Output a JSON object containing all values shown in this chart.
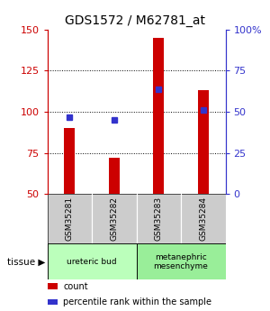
{
  "title": "GDS1572 / M62781_at",
  "samples": [
    "GSM35281",
    "GSM35282",
    "GSM35283",
    "GSM35284"
  ],
  "counts": [
    90,
    72,
    145,
    113
  ],
  "percentile_ranks": [
    47,
    45,
    64,
    51
  ],
  "ylim_left": [
    50,
    150
  ],
  "ylim_right": [
    0,
    100
  ],
  "yticks_left": [
    50,
    75,
    100,
    125,
    150
  ],
  "yticks_right": [
    0,
    25,
    50,
    75,
    100
  ],
  "ytick_labels_right": [
    "0",
    "25",
    "50",
    "75",
    "100%"
  ],
  "bar_color": "#cc0000",
  "dot_color": "#3333cc",
  "tissue_groups": [
    {
      "label": "ureteric bud",
      "samples": [
        0,
        1
      ],
      "color": "#bbffbb"
    },
    {
      "label": "metanephric\nmesenchyme",
      "samples": [
        2,
        3
      ],
      "color": "#99ee99"
    }
  ],
  "xlabel_color_left": "#cc0000",
  "xlabel_color_right": "#3333cc",
  "background_plot": "#ffffff",
  "background_label": "#cccccc",
  "bar_width": 0.25,
  "legend_items": [
    {
      "color": "#cc0000",
      "label": "count"
    },
    {
      "color": "#3333cc",
      "label": "percentile rank within the sample"
    }
  ]
}
